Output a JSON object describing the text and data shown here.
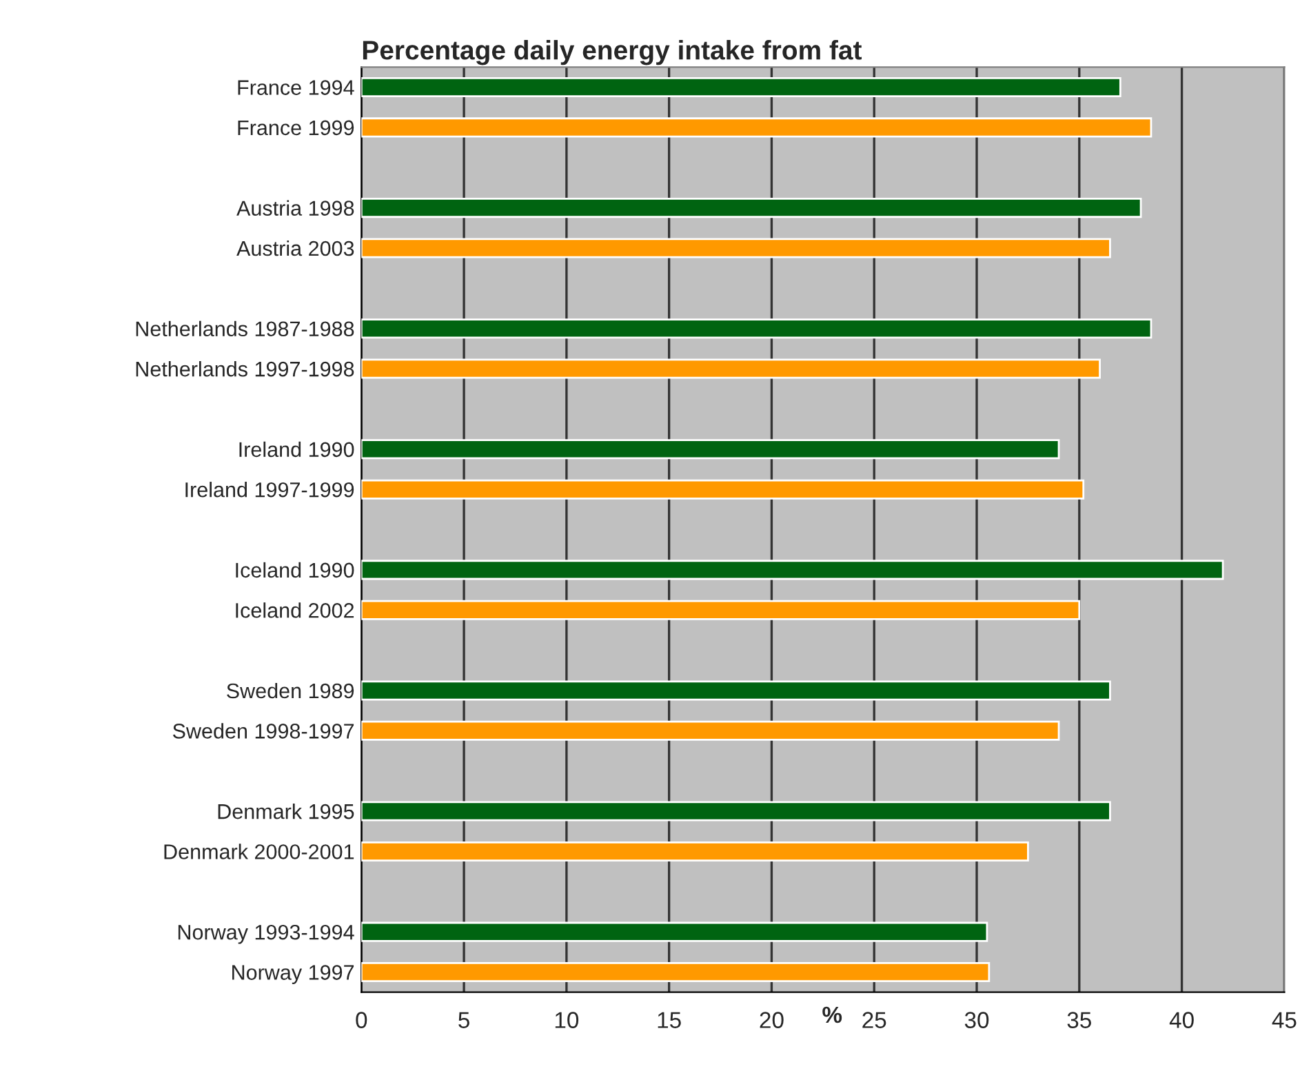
{
  "chart_data": {
    "type": "bar",
    "orientation": "horizontal",
    "title": "Percentage daily energy intake from fat",
    "xlabel": "%",
    "categories": [
      "France 1994",
      "France 1999",
      null,
      "Austria 1998",
      "Austria 2003",
      null,
      "Netherlands 1987-1988",
      "Netherlands 1997-1998",
      null,
      "Ireland 1990",
      "Ireland 1997-1999",
      null,
      "Iceland 1990",
      "Iceland 2002",
      null,
      "Sweden 1989",
      "Sweden 1998-1997",
      null,
      "Denmark 1995",
      "Denmark 2000-2001",
      null,
      "Norway 1993-1994",
      "Norway 1997"
    ],
    "values": [
      37.0,
      38.5,
      null,
      38.0,
      36.5,
      null,
      38.5,
      36.0,
      null,
      34.0,
      35.2,
      null,
      42.0,
      35.0,
      null,
      36.5,
      34.0,
      null,
      36.5,
      32.5,
      null,
      30.5,
      30.6
    ],
    "colors": [
      "#006411",
      "#ff9900",
      null,
      "#006411",
      "#ff9900",
      null,
      "#006411",
      "#ff9900",
      null,
      "#006411",
      "#ff9900",
      null,
      "#006411",
      "#ff9900",
      null,
      "#006411",
      "#ff9900",
      null,
      "#006411",
      "#ff9900",
      null,
      "#006411",
      "#ff9900"
    ],
    "xlim": [
      0,
      45
    ],
    "xticks": [
      0,
      5,
      10,
      15,
      20,
      25,
      30,
      35,
      40,
      45
    ],
    "grid": "x"
  }
}
